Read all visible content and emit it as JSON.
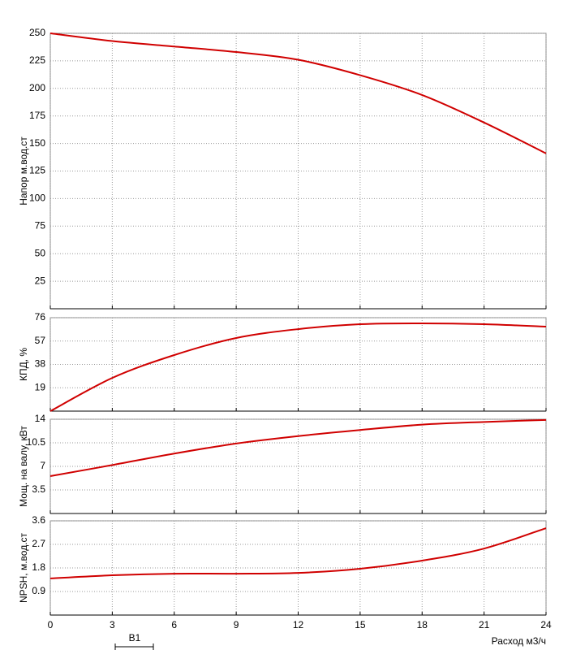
{
  "chart_data": [
    {
      "type": "line",
      "ylabel": "Напор м.вод.ст",
      "x": [
        0,
        3,
        6,
        9,
        12,
        15,
        18,
        21,
        24
      ],
      "series": [
        {
          "color": "#d00000",
          "values": [
            250,
            243,
            238,
            233,
            226,
            212,
            194,
            169,
            141
          ]
        }
      ],
      "xlim": [
        0,
        24
      ],
      "xticks": [
        0,
        3,
        6,
        9,
        12,
        15,
        18,
        21,
        24
      ],
      "ylim": [
        0,
        250
      ],
      "yticks": [
        25,
        50,
        75,
        100,
        125,
        150,
        175,
        200,
        225,
        250
      ],
      "grid": true
    },
    {
      "type": "line",
      "ylabel": "КПД, %",
      "x": [
        0,
        3,
        6,
        9,
        12,
        15,
        18,
        21,
        24
      ],
      "series": [
        {
          "color": "#d00000",
          "values": [
            0,
            27,
            45.6,
            59.5,
            66.7,
            70.7,
            71.4,
            70.7,
            68.7
          ]
        }
      ],
      "xlim": [
        0,
        24
      ],
      "xticks": [
        0,
        3,
        6,
        9,
        12,
        15,
        18,
        21,
        24
      ],
      "ylim": [
        0,
        76
      ],
      "yticks": [
        19,
        38,
        57,
        76
      ],
      "grid": true
    },
    {
      "type": "line",
      "ylabel": "Мощ. на валу, кВт",
      "x": [
        0,
        3,
        6,
        9,
        12,
        15,
        18,
        21,
        24
      ],
      "series": [
        {
          "color": "#d00000",
          "values": [
            5.55,
            7.2,
            8.9,
            10.4,
            11.5,
            12.4,
            13.2,
            13.6,
            13.9
          ]
        }
      ],
      "xlim": [
        0,
        24
      ],
      "xticks": [
        0,
        3,
        6,
        9,
        12,
        15,
        18,
        21,
        24
      ],
      "ylim": [
        0,
        14
      ],
      "yticks": [
        3.5,
        7,
        10.5,
        14
      ],
      "grid": true
    },
    {
      "type": "line",
      "ylabel": "NPSH, м.вод.ст",
      "xlabel": "Расход м3/ч",
      "annotation": "B1",
      "x": [
        0,
        3,
        6,
        9,
        12,
        15,
        18,
        21,
        24
      ],
      "series": [
        {
          "color": "#d00000",
          "values": [
            1.4,
            1.52,
            1.58,
            1.58,
            1.61,
            1.77,
            2.08,
            2.54,
            3.32
          ]
        }
      ],
      "xlim": [
        0,
        24
      ],
      "xticks": [
        0,
        3,
        6,
        9,
        12,
        15,
        18,
        21,
        24
      ],
      "ylim": [
        0,
        3.6
      ],
      "yticks": [
        0.9,
        1.8,
        2.7,
        3.6
      ],
      "grid": true
    }
  ]
}
